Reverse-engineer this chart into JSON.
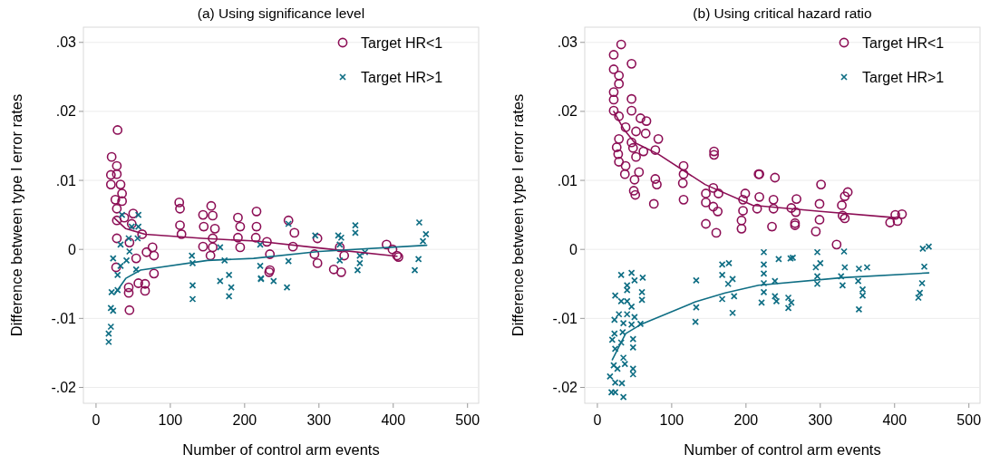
{
  "chart_data": [
    {
      "type": "scatter",
      "title": "(a) Using significance level",
      "xlabel": "Number of control arm events",
      "ylabel": "Difference between type I error rates",
      "xlim": [
        -17,
        515
      ],
      "ylim": [
        -0.0223,
        0.0322
      ],
      "xticks": [
        0,
        100,
        200,
        300,
        400,
        500
      ],
      "yticks": [
        {
          "value": 0.03,
          "label": ".03"
        },
        {
          "value": 0.02,
          "label": ".02"
        },
        {
          "value": 0.01,
          "label": ".01"
        },
        {
          "value": 0,
          "label": "0"
        },
        {
          "value": -0.01,
          "label": "-.01"
        },
        {
          "value": -0.02,
          "label": "-.02"
        }
      ],
      "grid": "y",
      "legend": "top right",
      "series": [
        {
          "name": "Target HR<1",
          "color": "#8c0e55",
          "marker": "circle",
          "x": [
            29,
            21,
            28,
            28,
            20,
            20,
            33,
            35,
            26,
            35,
            28,
            50,
            38,
            28,
            48,
            62,
            28,
            45,
            76,
            68,
            78,
            54,
            27,
            78,
            57,
            66,
            44,
            66,
            44,
            45,
            112,
            113,
            113,
            115,
            155,
            144,
            157,
            145,
            160,
            157,
            144,
            154,
            157,
            191,
            194,
            191,
            194,
            216,
            216,
            215,
            233,
            259,
            267,
            230,
            265,
            234,
            234,
            298,
            294,
            298,
            320,
            330,
            328,
            334,
            391,
            399,
            405,
            407
          ],
          "values": [
            0.0173,
            0.0134,
            0.0121,
            0.0109,
            0.0108,
            0.0094,
            0.0094,
            0.0081,
            0.0072,
            0.007,
            0.0059,
            0.0052,
            0.0046,
            0.0042,
            0.0037,
            0.0022,
            0.0016,
            0.001,
            0.0003,
            -0.0004,
            -0.0009,
            -0.0013,
            -0.0026,
            -0.0035,
            -0.0049,
            -0.005,
            -0.0055,
            -0.006,
            -0.0063,
            -0.0088,
            0.0068,
            0.0059,
            0.0035,
            0.0022,
            0.0063,
            0.005,
            0.0049,
            0.0033,
            0.003,
            0.0016,
            0.0004,
            -0.0009,
            0.0003,
            0.0046,
            0.0033,
            0.0017,
            0.0003,
            0.0055,
            0.0033,
            0.0017,
            -0.0033,
            0.0042,
            0.0024,
            0.0011,
            0.0004,
            -0.0007,
            -0.003,
            0.0016,
            -0.0007,
            -0.002,
            -0.0029,
            -0.0033,
            0.0003,
            -0.0009,
            0.0007,
            0,
            -0.0009,
            -0.0011
          ]
        },
        {
          "name": "Target HR>1",
          "color": "#0f6e84",
          "marker": "cross",
          "x": [
            17,
            17,
            20,
            23,
            20,
            21,
            29,
            29,
            33,
            23,
            41,
            45,
            33,
            44,
            56,
            48,
            35,
            57,
            57,
            54,
            129,
            130,
            130,
            130,
            167,
            173,
            179,
            167,
            179,
            182,
            221,
            221,
            222,
            259,
            295,
            326,
            330,
            349,
            349,
            355,
            355,
            352,
            362,
            435,
            444,
            440,
            434,
            429,
            222,
            239,
            257,
            259,
            328,
            328
          ],
          "values": [
            -0.0134,
            -0.0122,
            -0.0112,
            -0.0089,
            -0.0085,
            -0.0062,
            -0.0059,
            -0.0037,
            -0.0024,
            -0.0013,
            -0.0016,
            -0.0003,
            0.0007,
            0.0016,
            0.0016,
            0.0033,
            0.005,
            0.005,
            0.0033,
            -0.0029,
            -0.0009,
            -0.002,
            -0.0052,
            -0.0072,
            0.0003,
            -0.0016,
            -0.0037,
            -0.0046,
            -0.0068,
            -0.0055,
            0.0007,
            -0.0024,
            -0.0043,
            0.0037,
            0.002,
            0.002,
            0.0017,
            0.0035,
            0.0024,
            -0.0009,
            -0.002,
            -0.003,
            -0.0004,
            0.0039,
            0.0022,
            0.0012,
            -0.0014,
            -0.003,
            -0.0042,
            -0.0046,
            -0.0055,
            -0.0017,
            -0.0016,
            0.0007
          ]
        },
        {
          "type": "line",
          "color": "#8c0e55",
          "x": [
            25,
            40,
            66,
            143,
            216,
            300,
            405
          ],
          "values": [
            0.0045,
            0.003,
            0.0022,
            0.0016,
            0.0012,
            0.0002,
            -0.001
          ]
        },
        {
          "type": "line",
          "color": "#0f6e84",
          "x": [
            25,
            40,
            60,
            150,
            212,
            300,
            445
          ],
          "values": [
            -0.0065,
            -0.0042,
            -0.003,
            -0.0016,
            -0.0013,
            -0.0003,
            0.0006
          ]
        }
      ]
    },
    {
      "type": "scatter",
      "title": "(b) Using critical hazard ratio",
      "xlabel": "Number of control arm events",
      "ylabel": "Difference between type I error rates",
      "xlim": [
        -17,
        515
      ],
      "ylim": [
        -0.0223,
        0.0322
      ],
      "xticks": [
        0,
        100,
        200,
        300,
        400,
        500
      ],
      "yticks": [
        {
          "value": 0.03,
          "label": ".03"
        },
        {
          "value": 0.02,
          "label": ".02"
        },
        {
          "value": 0.01,
          "label": ".01"
        },
        {
          "value": 0,
          "label": "0"
        },
        {
          "value": -0.01,
          "label": "-.01"
        },
        {
          "value": -0.02,
          "label": "-.02"
        }
      ],
      "grid": "y",
      "legend": "top right",
      "series": [
        {
          "name": "Target HR<1",
          "color": "#8c0e55",
          "marker": "circle",
          "x": [
            32,
            22,
            46,
            22,
            29,
            29,
            22,
            22,
            46,
            22,
            46,
            29,
            58,
            66,
            38,
            52,
            65,
            29,
            82,
            46,
            26,
            48,
            78,
            62,
            28,
            52,
            29,
            38,
            37,
            56,
            50,
            78,
            80,
            49,
            51,
            76,
            116,
            116,
            115,
            116,
            157,
            157,
            156,
            146,
            163,
            146,
            156,
            162,
            146,
            160,
            199,
            196,
            196,
            194,
            194,
            217,
            218,
            239,
            301,
            218,
            237,
            268,
            215,
            237,
            261,
            267,
            299,
            329,
            337,
            333,
            235,
            266,
            266,
            294,
            299,
            330,
            333,
            322,
            394,
            401,
            410,
            404
          ],
          "values": [
            0.0297,
            0.0282,
            0.0269,
            0.0261,
            0.0252,
            0.024,
            0.0228,
            0.0217,
            0.0218,
            0.0201,
            0.0201,
            0.0193,
            0.019,
            0.0186,
            0.0177,
            0.0171,
            0.0168,
            0.016,
            0.016,
            0.0155,
            0.0148,
            0.0147,
            0.0144,
            0.0142,
            0.0138,
            0.0134,
            0.0127,
            0.0121,
            0.0109,
            0.0112,
            0.0101,
            0.0102,
            0.0094,
            0.0085,
            0.0079,
            0.0066,
            0.0121,
            0.0109,
            0.0096,
            0.0072,
            0.0142,
            0.0137,
            0.0089,
            0.0081,
            0.0081,
            0.0068,
            0.0062,
            0.0055,
            0.0037,
            0.0024,
            0.0081,
            0.0072,
            0.0056,
            0.0042,
            0.003,
            0.0109,
            0.0109,
            0.0104,
            0.0094,
            0.0076,
            0.0072,
            0.0073,
            0.0059,
            0.0059,
            0.006,
            0.0054,
            0.0066,
            0.0064,
            0.0083,
            0.0077,
            0.0033,
            0.0035,
            0.0038,
            0.0026,
            0.0043,
            0.0049,
            0.0045,
            0.0007,
            0.0039,
            0.005,
            0.0051,
            0.0041
          ]
        },
        {
          "name": "Target HR>1",
          "color": "#0f6e84",
          "marker": "cross",
          "x": [
            32,
            46,
            61,
            50,
            40,
            40,
            60,
            60,
            24,
            32,
            40,
            46,
            29,
            40,
            50,
            23,
            35,
            46,
            58,
            23,
            34,
            20,
            48,
            32,
            48,
            24,
            35,
            22,
            37,
            27,
            48,
            48,
            17,
            24,
            33,
            19,
            24,
            35,
            133,
            133,
            132,
            168,
            168,
            176,
            168,
            182,
            182,
            184,
            177,
            224,
            224,
            224,
            224,
            224,
            221,
            239,
            239,
            241,
            244,
            260,
            263,
            257,
            257,
            261,
            296,
            294,
            300,
            296,
            296,
            332,
            333,
            328,
            330,
            352,
            363,
            351,
            357,
            357,
            352,
            438,
            446,
            440,
            437,
            434,
            432
          ],
          "values": [
            -0.0037,
            -0.0034,
            -0.0041,
            -0.0045,
            -0.0052,
            -0.0059,
            -0.0062,
            -0.0073,
            -0.0067,
            -0.0075,
            -0.0075,
            -0.0083,
            -0.0094,
            -0.0094,
            -0.0098,
            -0.0102,
            -0.0107,
            -0.0109,
            -0.0108,
            -0.0122,
            -0.012,
            -0.0131,
            -0.013,
            -0.0135,
            -0.0142,
            -0.0144,
            -0.0157,
            -0.0168,
            -0.0166,
            -0.0173,
            -0.0173,
            -0.0181,
            -0.0184,
            -0.0193,
            -0.0194,
            -0.0207,
            -0.0207,
            -0.0214,
            -0.0045,
            -0.0084,
            -0.0105,
            -0.0022,
            -0.0037,
            -0.005,
            -0.0072,
            -0.0043,
            -0.0092,
            -0.0068,
            -0.002,
            -0.0004,
            -0.0022,
            -0.0035,
            -0.0049,
            -0.0062,
            -0.0077,
            -0.0046,
            -0.0068,
            -0.0075,
            -0.0014,
            -0.0013,
            -0.0012,
            -0.007,
            -0.0085,
            -0.0077,
            -0.0004,
            -0.0026,
            -0.002,
            -0.0039,
            -0.005,
            -0.0003,
            -0.0026,
            -0.0039,
            -0.0052,
            -0.0028,
            -0.0026,
            -0.0046,
            -0.0058,
            -0.0067,
            -0.0087,
            0.0001,
            0.0004,
            -0.0025,
            -0.0049,
            -0.0063,
            -0.007
          ]
        },
        {
          "type": "line",
          "color": "#8c0e55",
          "x": [
            22,
            35,
            50,
            82,
            145,
            209,
            300,
            400
          ],
          "values": [
            0.02,
            0.0175,
            0.0155,
            0.0138,
            0.0094,
            0.0064,
            0.0055,
            0.0046
          ]
        },
        {
          "type": "line",
          "color": "#0f6e84",
          "x": [
            20,
            38,
            60,
            132,
            172,
            217,
            330,
            446
          ],
          "values": [
            -0.016,
            -0.0122,
            -0.0108,
            -0.0076,
            -0.0063,
            -0.0052,
            -0.0041,
            -0.0034
          ]
        }
      ]
    }
  ]
}
